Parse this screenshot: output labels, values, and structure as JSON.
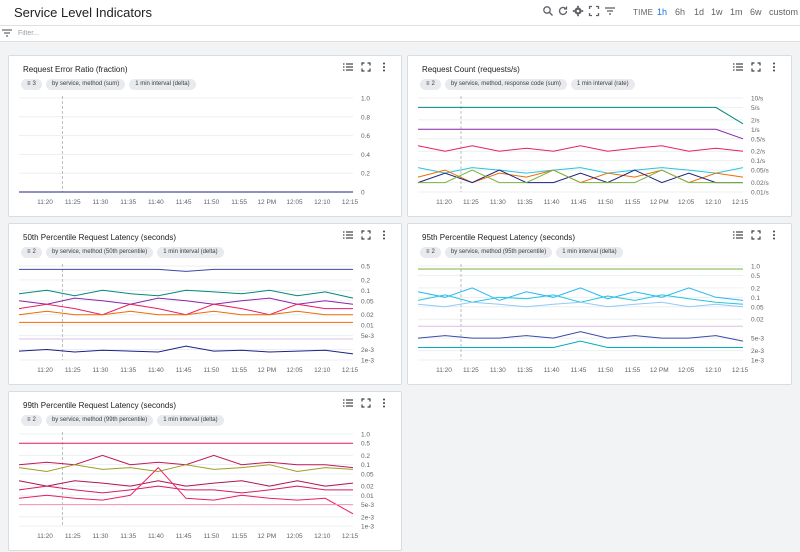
{
  "header": {
    "title": "Service Level Indicators",
    "time_label": "TIME",
    "ranges": [
      "1h",
      "6h",
      "1d",
      "1w",
      "1m",
      "6w",
      "custom"
    ],
    "selected_range": "1h",
    "icons": [
      "search-icon",
      "refresh-icon",
      "settings-icon",
      "fullscreen-icon",
      "filter-list-icon"
    ]
  },
  "filter": {
    "placeholder": "Filter..."
  },
  "colors": {
    "accent": "#1a73e8",
    "series": [
      "#1a237e",
      "#3949ab",
      "#00897b",
      "#e91e63",
      "#ef6c00",
      "#8e24aa",
      "#7cb342",
      "#26c6da",
      "#d81b60",
      "#795548"
    ]
  },
  "charts": [
    {
      "card_title": "Request Error Ratio (fraction)",
      "chips": [
        "3",
        "by service, method (sum)",
        "1 min interval (delta)"
      ],
      "chart_data": {
        "type": "line",
        "title": "Request Error Ratio (fraction)",
        "x_ticks": [
          "11:20",
          "11:25",
          "11:30",
          "11:35",
          "11:40",
          "11:45",
          "11:50",
          "11:55",
          "12 PM",
          "12:05",
          "12:10",
          "12:15"
        ],
        "y_ticks": [
          "1.0",
          "0.8",
          "0.6",
          "0.4",
          "0.2",
          "0"
        ],
        "ylim": [
          0,
          1
        ],
        "scale": "linear",
        "grid": true,
        "series": [
          {
            "values": [
              0,
              0,
              0,
              0,
              0,
              0,
              0,
              0,
              0,
              0,
              0,
              0
            ],
            "color": "#3949ab"
          },
          {
            "values": [
              0,
              0,
              0,
              0,
              0,
              0,
              0,
              0,
              0,
              0,
              0,
              0
            ],
            "color": "#7cb342"
          },
          {
            "values": [
              0,
              0,
              0,
              0,
              0,
              0,
              0,
              0,
              0,
              0,
              0,
              0
            ],
            "color": "#1a237e"
          }
        ]
      }
    },
    {
      "card_title": "Request Count (requests/s)",
      "chips": [
        "2",
        "by service, method, response code (sum)",
        "1 min interval (rate)"
      ],
      "chart_data": {
        "type": "line",
        "title": "Request Count (requests/s)",
        "x_ticks": [
          "11:20",
          "11:25",
          "11:30",
          "11:35",
          "11:40",
          "11:45",
          "11:50",
          "11:55",
          "12 PM",
          "12:05",
          "12:10",
          "12:15"
        ],
        "y_ticks": [
          "10/s",
          "5/s",
          "2/s",
          "1/s",
          "0.5/s",
          "0.2/s",
          "0.1/s",
          "0.05/s",
          "0.02/s",
          "0.01/s"
        ],
        "ylim": [
          0.01,
          10
        ],
        "scale": "log",
        "grid": true,
        "series": [
          {
            "values": [
              5,
              5,
              5,
              5,
              5,
              5,
              5,
              5,
              5,
              5,
              5,
              5,
              1.5
            ],
            "color": "#00897b"
          },
          {
            "values": [
              1,
              1,
              1,
              1,
              1,
              1,
              1,
              1,
              1,
              1,
              1,
              1,
              0.5
            ],
            "color": "#8e24aa"
          },
          {
            "values": [
              0.3,
              0.2,
              0.3,
              0.2,
              0.25,
              0.2,
              0.3,
              0.2,
              0.25,
              0.3,
              0.2,
              0.25,
              0.2
            ],
            "color": "#e91e63"
          },
          {
            "values": [
              0.06,
              0.04,
              0.06,
              0.05,
              0.04,
              0.05,
              0.06,
              0.04,
              0.05,
              0.06,
              0.05,
              0.04,
              0.06
            ],
            "color": "#26c6da"
          },
          {
            "values": [
              0.03,
              0.05,
              0.02,
              0.04,
              0.03,
              0.05,
              0.02,
              0.04,
              0.03,
              0.05,
              0.02,
              0.04,
              0.03
            ],
            "color": "#ef6c00"
          },
          {
            "values": [
              0.02,
              0.04,
              0.02,
              0.05,
              0.02,
              0.02,
              0.04,
              0.02,
              0.05,
              0.02,
              0.04,
              0.02,
              0.02
            ],
            "color": "#1a237e"
          },
          {
            "values": [
              0.02,
              0.02,
              0.05,
              0.02,
              0.02,
              0.05,
              0.02,
              0.02,
              0.02,
              0.05,
              0.02,
              0.02,
              0.02
            ],
            "color": "#7cb342"
          }
        ]
      }
    },
    {
      "card_title": "50th Percentile Request Latency (seconds)",
      "chips": [
        "2",
        "by service, method (50th percentile)",
        "1 min interval (delta)"
      ],
      "chart_data": {
        "type": "line",
        "title": "50th Percentile Request Latency (seconds)",
        "x_ticks": [
          "11:20",
          "11:25",
          "11:30",
          "11:35",
          "11:40",
          "11:45",
          "11:50",
          "11:55",
          "12 PM",
          "12:05",
          "12:10",
          "12:15"
        ],
        "y_ticks": [
          "0.5",
          "0.2",
          "0.1",
          "0.05",
          "0.02",
          "0.01",
          "5e-3",
          "2e-3",
          "1e-3"
        ],
        "ylim": [
          0.001,
          0.5
        ],
        "scale": "log",
        "grid": true,
        "series": [
          {
            "values": [
              0.4,
              0.4,
              0.4,
              0.4,
              0.4,
              0.4,
              0.35,
              0.4,
              0.4,
              0.4,
              0.4,
              0.4,
              0.4
            ],
            "color": "#3949ab"
          },
          {
            "values": [
              0.08,
              0.1,
              0.07,
              0.1,
              0.08,
              0.07,
              0.1,
              0.09,
              0.08,
              0.1,
              0.07,
              0.09,
              0.06
            ],
            "color": "#00897b"
          },
          {
            "values": [
              0.05,
              0.04,
              0.06,
              0.05,
              0.04,
              0.06,
              0.05,
              0.04,
              0.05,
              0.06,
              0.04,
              0.05,
              0.04
            ],
            "color": "#8e24aa"
          },
          {
            "values": [
              0.03,
              0.04,
              0.03,
              0.02,
              0.04,
              0.03,
              0.02,
              0.04,
              0.03,
              0.02,
              0.04,
              0.03,
              0.03
            ],
            "color": "#e91e63"
          },
          {
            "values": [
              0.02,
              0.025,
              0.02,
              0.02,
              0.025,
              0.02,
              0.02,
              0.025,
              0.02,
              0.02,
              0.025,
              0.02,
              0.02
            ],
            "color": "#ef6c00"
          },
          {
            "values": [
              0.012,
              0.012,
              0.012,
              0.012,
              0.012,
              0.012,
              0.012,
              0.012,
              0.012,
              0.012,
              0.012,
              0.012,
              0.012
            ],
            "color": "#ef6c00"
          },
          {
            "values": [
              0.004,
              0.004,
              0.004,
              0.004,
              0.004,
              0.004,
              0.004,
              0.004,
              0.004,
              0.004,
              0.004,
              0.004,
              0.004
            ],
            "color": "#e1bee7"
          },
          {
            "values": [
              0.0018,
              0.002,
              0.0017,
              0.0019,
              0.0018,
              0.0017,
              0.0025,
              0.0018,
              0.0019,
              0.0017,
              0.0018,
              0.0019,
              0.0015
            ],
            "color": "#1a237e"
          }
        ]
      }
    },
    {
      "card_title": "95th Percentile Request Latency (seconds)",
      "chips": [
        "2",
        "by service, method (95th percentile)",
        "1 min interval (delta)"
      ],
      "chart_data": {
        "type": "line",
        "title": "95th Percentile Request Latency (seconds)",
        "x_ticks": [
          "11:20",
          "11:25",
          "11:30",
          "11:35",
          "11:40",
          "11:45",
          "11:50",
          "11:55",
          "12 PM",
          "12:05",
          "12:10",
          "12:15"
        ],
        "y_ticks": [
          "1.0",
          "0.5",
          "0.2",
          "0.1",
          "0.05",
          "0.02",
          "5e-3",
          "2e-3",
          "1e-3"
        ],
        "ylim": [
          0.001,
          1
        ],
        "scale": "log",
        "grid": true,
        "series": [
          {
            "values": [
              0.8,
              0.8,
              0.8,
              0.8,
              0.8,
              0.8,
              0.8,
              0.8,
              0.8,
              0.8,
              0.8,
              0.8,
              0.8
            ],
            "color": "#7cb342"
          },
          {
            "values": [
              0.15,
              0.1,
              0.2,
              0.08,
              0.15,
              0.1,
              0.2,
              0.09,
              0.15,
              0.1,
              0.2,
              0.1,
              0.08
            ],
            "color": "#29b6f6"
          },
          {
            "values": [
              0.08,
              0.12,
              0.07,
              0.1,
              0.09,
              0.12,
              0.07,
              0.11,
              0.08,
              0.12,
              0.09,
              0.07,
              0.06
            ],
            "color": "#26c6da"
          },
          {
            "values": [
              0.06,
              0.05,
              0.07,
              0.06,
              0.05,
              0.06,
              0.07,
              0.05,
              0.06,
              0.07,
              0.05,
              0.06,
              0.05
            ],
            "color": "#90caf9"
          },
          {
            "values": [
              0.012,
              0.012,
              0.012,
              0.012,
              0.012,
              0.012,
              0.012,
              0.012,
              0.012,
              0.012,
              0.012,
              0.012,
              0.012
            ],
            "color": "#e1bee7"
          },
          {
            "values": [
              0.005,
              0.006,
              0.005,
              0.005,
              0.006,
              0.005,
              0.008,
              0.005,
              0.006,
              0.005,
              0.005,
              0.006,
              0.004
            ],
            "color": "#3949ab"
          },
          {
            "values": [
              0.0025,
              0.0025,
              0.0025,
              0.0025,
              0.0025,
              0.0025,
              0.004,
              0.0025,
              0.0025,
              0.0025,
              0.0025,
              0.0025,
              0.0025
            ],
            "color": "#00acc1"
          }
        ]
      }
    },
    {
      "card_title": "99th Percentile Request Latency (seconds)",
      "chips": [
        "2",
        "by service, method (99th percentile)",
        "1 min interval (delta)"
      ],
      "chart_data": {
        "type": "line",
        "title": "99th Percentile Request Latency (seconds)",
        "x_ticks": [
          "11:20",
          "11:25",
          "11:30",
          "11:35",
          "11:40",
          "11:45",
          "11:50",
          "11:55",
          "12 PM",
          "12:05",
          "12:10",
          "12:15"
        ],
        "y_ticks": [
          "1.0",
          "0.5",
          "0.2",
          "0.1",
          "0.05",
          "0.02",
          "0.01",
          "5e-3",
          "2e-3",
          "1e-3"
        ],
        "ylim": [
          0.001,
          1
        ],
        "scale": "log",
        "grid": true,
        "series": [
          {
            "values": [
              0.5,
              0.5,
              0.5,
              0.5,
              0.5,
              0.5,
              0.5,
              0.5,
              0.5,
              0.5,
              0.5,
              0.5,
              0.5
            ],
            "color": "#e91e63"
          },
          {
            "values": [
              0.1,
              0.12,
              0.1,
              0.2,
              0.1,
              0.12,
              0.1,
              0.2,
              0.1,
              0.12,
              0.1,
              0.1,
              0.08
            ],
            "color": "#c2185b"
          },
          {
            "values": [
              0.08,
              0.06,
              0.1,
              0.07,
              0.08,
              0.06,
              0.1,
              0.07,
              0.08,
              0.1,
              0.06,
              0.08,
              0.07
            ],
            "color": "#9e9d24"
          },
          {
            "values": [
              0.03,
              0.02,
              0.03,
              0.025,
              0.02,
              0.03,
              0.02,
              0.025,
              0.03,
              0.02,
              0.03,
              0.02,
              0.025
            ],
            "color": "#ad1457"
          },
          {
            "values": [
              0.015,
              0.02,
              0.015,
              0.012,
              0.015,
              0.02,
              0.015,
              0.015,
              0.012,
              0.015,
              0.02,
              0.015,
              0.015
            ],
            "color": "#d81b60"
          },
          {
            "values": [
              0.008,
              0.01,
              0.008,
              0.007,
              0.01,
              0.08,
              0.008,
              0.007,
              0.01,
              0.008,
              0.007,
              0.008,
              0.0025
            ],
            "color": "#e91e63"
          },
          {
            "values": [
              0.005,
              0.005,
              0.005,
              0.005,
              0.005,
              0.005,
              0.005,
              0.005,
              0.005,
              0.005,
              0.005,
              0.005,
              0.005
            ],
            "color": "#f48fb1"
          }
        ]
      }
    }
  ]
}
